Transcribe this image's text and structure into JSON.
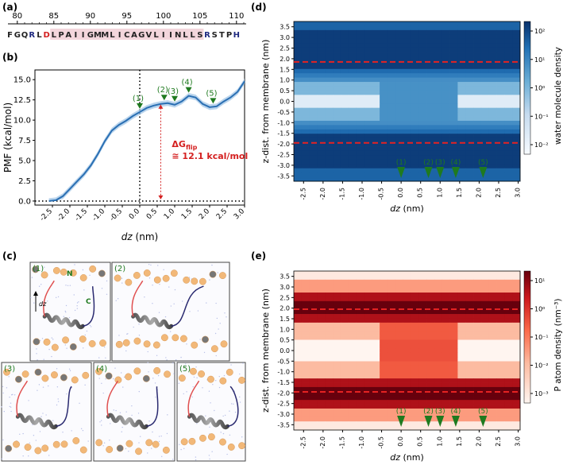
{
  "panel_labels": {
    "a": "(a)",
    "b": "(b)",
    "c": "(c)",
    "d": "(d)",
    "e": "(e)"
  },
  "sequence": {
    "ruler_ticks": [
      "80",
      "85",
      "90",
      "95",
      "100",
      "105",
      "110"
    ],
    "ruler_values": [
      80,
      85,
      90,
      95,
      100,
      105,
      110
    ],
    "residues": [
      "F",
      "G",
      "Q",
      "R",
      "L",
      "D",
      "L",
      "P",
      "A",
      "I",
      "I",
      "G",
      "M",
      "M",
      "L",
      "I",
      "C",
      "A",
      "G",
      "V",
      "L",
      "I",
      "I",
      "N",
      "L",
      "L",
      "S",
      "R",
      "S",
      "T",
      "P",
      "H"
    ],
    "start": 79,
    "highlight_start": 85,
    "highlight_end": 105,
    "colors": {
      "basic": "#1f2a80",
      "acidic": "#d42020",
      "default": "#222222",
      "highlight": "#f3d6dc"
    }
  },
  "pmf_markers": [
    {
      "label": "(1)",
      "x": 0.0
    },
    {
      "label": "(2)",
      "x": 0.7
    },
    {
      "label": "(3)",
      "x": 1.0
    },
    {
      "label": "(4)",
      "x": 1.4
    },
    {
      "label": "(5)",
      "x": 2.1
    }
  ],
  "pmf_annotation": {
    "delta": "ΔG",
    "sub": "flip",
    "value": "≅ 12.1 kcal/mol",
    "color": "#d42020"
  },
  "snapshots": [
    {
      "label": "(1)",
      "n_label": "N",
      "c_label": "C",
      "axis_label": "dz"
    },
    {
      "label": "(2)"
    },
    {
      "label": "(3)"
    },
    {
      "label": "(4)"
    },
    {
      "label": "(5)"
    }
  ],
  "chart_data": [
    {
      "type": "line",
      "title": "",
      "xlabel": "dz (nm)",
      "ylabel": "PMF (kcal/mol)",
      "xlim": [
        -3.0,
        3.0
      ],
      "ylim": [
        -0.5,
        16.2
      ],
      "xticks": [
        "-2.5",
        "-2.0",
        "-1.5",
        "-1.0",
        "-0.5",
        "0.0",
        "0.5",
        "1.0",
        "1.5",
        "2.0",
        "2.5",
        "3.0"
      ],
      "xtick_values": [
        -2.5,
        -2.0,
        -1.5,
        -1.0,
        -0.5,
        0.0,
        0.5,
        1.0,
        1.5,
        2.0,
        2.5,
        3.0
      ],
      "yticks": [
        "0.0",
        "2.5",
        "5.0",
        "7.5",
        "10.0",
        "12.5",
        "15.0"
      ],
      "ytick_values": [
        0.0,
        2.5,
        5.0,
        7.5,
        10.0,
        12.5,
        15.0
      ],
      "series": [
        {
          "name": "PMF",
          "color": "#2a6fb3",
          "x": [
            -2.6,
            -2.4,
            -2.2,
            -2.0,
            -1.8,
            -1.6,
            -1.4,
            -1.2,
            -1.0,
            -0.8,
            -0.6,
            -0.4,
            -0.2,
            0.0,
            0.2,
            0.4,
            0.6,
            0.8,
            1.0,
            1.2,
            1.4,
            1.6,
            1.8,
            2.0,
            2.2,
            2.4,
            2.6,
            2.8,
            3.0
          ],
          "y": [
            0.0,
            0.1,
            0.6,
            1.5,
            2.4,
            3.3,
            4.4,
            5.8,
            7.4,
            8.7,
            9.4,
            9.9,
            10.5,
            11.0,
            11.5,
            11.8,
            12.0,
            12.1,
            11.9,
            12.3,
            13.0,
            12.8,
            12.0,
            11.6,
            11.7,
            12.3,
            12.8,
            13.5,
            14.8
          ]
        }
      ]
    },
    {
      "type": "heatmap",
      "title": "",
      "xlabel": "dz (nm)",
      "ylabel": "z-dist. from membrane (nm)",
      "colorbar_label": "water molecule density",
      "colorbar_ticks": [
        "10²",
        "10¹",
        "10⁰",
        "10⁻¹",
        "10⁻²"
      ],
      "colorbar_exponents": [
        2,
        1,
        0,
        -1,
        -2
      ],
      "xlim": [
        -2.75,
        3.05
      ],
      "ylim": [
        -3.75,
        3.75
      ],
      "xticks": [
        "-2.5",
        "-2.0",
        "-1.5",
        "-1.0",
        "-0.5",
        "0.0",
        "0.5",
        "1.0",
        "1.5",
        "2.0",
        "2.5",
        "3.0"
      ],
      "xtick_values": [
        -2.5,
        -2.0,
        -1.5,
        -1.0,
        -0.5,
        0.0,
        0.5,
        1.0,
        1.5,
        2.0,
        2.5,
        3.0
      ],
      "yticks": [
        "3.5",
        "3.0",
        "2.5",
        "2.0",
        "1.5",
        "1.0",
        "0.5",
        "0.0",
        "-0.5",
        "-1.0",
        "-1.5",
        "-2.0",
        "-2.5",
        "-3.0",
        "-3.5"
      ],
      "ytick_values": [
        3.5,
        3.0,
        2.5,
        2.0,
        1.5,
        1.0,
        0.5,
        0.0,
        -0.5,
        -1.0,
        -1.5,
        -2.0,
        -2.5,
        -3.0,
        -3.5
      ],
      "dashed_lines_y": [
        1.85,
        -1.95
      ],
      "markers": [
        {
          "label": "(1)",
          "x": 0.0
        },
        {
          "label": "(2)",
          "x": 0.7
        },
        {
          "label": "(3)",
          "x": 1.0
        },
        {
          "label": "(4)",
          "x": 1.4
        },
        {
          "label": "(5)",
          "x": 2.1
        }
      ]
    },
    {
      "type": "heatmap",
      "title": "",
      "xlabel": "dz (nm)",
      "ylabel": "z-dist. from membrane (nm)",
      "colorbar_label": "P atom density",
      "colorbar_unit": "(nm⁻³)",
      "colorbar_ticks": [
        "10¹",
        "10⁰",
        "10⁻¹",
        "10⁻²",
        "10⁻³"
      ],
      "colorbar_exponents": [
        1,
        0,
        -1,
        -2,
        -3
      ],
      "xlim": [
        -2.75,
        3.05
      ],
      "ylim": [
        -3.75,
        3.75
      ],
      "xticks": [
        "-2.5",
        "-2.0",
        "-1.5",
        "-1.0",
        "-0.5",
        "0.0",
        "0.5",
        "1.0",
        "1.5",
        "2.0",
        "2.5",
        "3.0"
      ],
      "xtick_values": [
        -2.5,
        -2.0,
        -1.5,
        -1.0,
        -0.5,
        0.0,
        0.5,
        1.0,
        1.5,
        2.0,
        2.5,
        3.0
      ],
      "yticks": [
        "3.5",
        "3.0",
        "2.5",
        "2.0",
        "1.5",
        "1.0",
        "0.5",
        "0.0",
        "-0.5",
        "-1.0",
        "-1.5",
        "-2.0",
        "-2.5",
        "-3.0",
        "-3.5"
      ],
      "ytick_values": [
        3.5,
        3.0,
        2.5,
        2.0,
        1.5,
        1.0,
        0.5,
        0.0,
        -0.5,
        -1.0,
        -1.5,
        -2.0,
        -2.5,
        -3.0,
        -3.5
      ],
      "dashed_lines_y": [
        1.95,
        -1.95
      ],
      "markers": [
        {
          "label": "(1)",
          "x": 0.0
        },
        {
          "label": "(2)",
          "x": 0.7
        },
        {
          "label": "(3)",
          "x": 1.0
        },
        {
          "label": "(4)",
          "x": 1.4
        },
        {
          "label": "(5)",
          "x": 2.1
        }
      ]
    }
  ]
}
